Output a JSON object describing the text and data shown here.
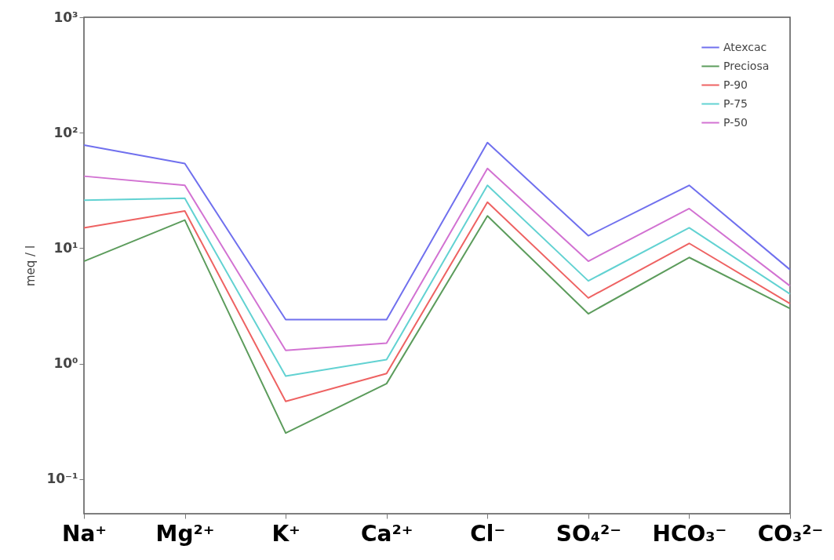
{
  "chart_data": {
    "type": "line",
    "ylabel": "meq / l",
    "categories": [
      "Na⁺",
      "Mg²⁺",
      "K⁺",
      "Ca²⁺",
      "Cl⁻",
      "SO₄²⁻",
      "HCO₃⁻",
      "CO₃²⁻"
    ],
    "series": [
      {
        "name": "Atexcac",
        "color": "#7070ee",
        "values": [
          78,
          54,
          2.4,
          2.4,
          82,
          12.8,
          35,
          6.5
        ]
      },
      {
        "name": "Preciosa",
        "color": "#5c9c5c",
        "values": [
          7.7,
          17.5,
          0.25,
          0.67,
          19,
          2.7,
          8.3,
          3.0
        ]
      },
      {
        "name": "P-90",
        "color": "#ee6262",
        "values": [
          15,
          21,
          0.47,
          0.82,
          25,
          3.7,
          11,
          3.3
        ]
      },
      {
        "name": "P-75",
        "color": "#62d2d2",
        "values": [
          26,
          27,
          0.78,
          1.08,
          35,
          5.2,
          15,
          4.0
        ]
      },
      {
        "name": "P-50",
        "color": "#d272d2",
        "values": [
          42,
          35,
          1.3,
          1.5,
          49,
          7.7,
          22,
          4.7
        ]
      }
    ],
    "log": "y",
    "ylim": [
      0.05,
      1000
    ],
    "yticks": [
      {
        "value": 0.1,
        "label": "10⁻¹"
      },
      {
        "value": 1,
        "label": "10⁰"
      },
      {
        "value": 10,
        "label": "10¹"
      },
      {
        "value": 100,
        "label": "10²"
      },
      {
        "value": 1000,
        "label": "10³"
      }
    ],
    "grid": false,
    "legend": "top right",
    "marker": "none",
    "line_style": "solid"
  }
}
